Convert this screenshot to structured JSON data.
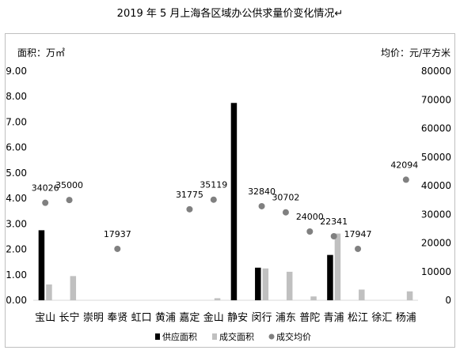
{
  "chart_data": {
    "type": "bar",
    "title": "2019 年 5 月上海各区域办公供求量价变化情况↵",
    "ylabel_left": "面积：万㎡",
    "ylabel_right": "均价：元/平方米",
    "ylim_left": [
      0,
      9
    ],
    "ylim_right": [
      0,
      80000
    ],
    "yticks_left": [
      "0.00",
      "1.00",
      "2.00",
      "3.00",
      "4.00",
      "5.00",
      "6.00",
      "7.00",
      "8.00",
      "9.00"
    ],
    "yticks_right": [
      "0",
      "10000",
      "20000",
      "30000",
      "40000",
      "50000",
      "60000",
      "70000",
      "80000"
    ],
    "categories": [
      "宝山",
      "长宁",
      "崇明",
      "奉贤",
      "虹口",
      "黄浦",
      "嘉定",
      "金山",
      "静安",
      "闵行",
      "浦东",
      "普陀",
      "青浦",
      "松江",
      "徐汇",
      "杨浦"
    ],
    "series": [
      {
        "name": "供应面积",
        "kind": "bar",
        "axis": "left",
        "color": "#000000",
        "values": [
          2.75,
          0,
          0,
          0,
          0,
          0,
          0,
          0,
          7.75,
          1.28,
          0,
          0,
          1.78,
          0,
          0,
          0
        ]
      },
      {
        "name": "成交面积",
        "kind": "bar",
        "axis": "left",
        "color": "#c0c0c0",
        "values": [
          0.62,
          0.95,
          0,
          0,
          0,
          0,
          0,
          0.08,
          0,
          1.25,
          1.12,
          0.15,
          2.62,
          0.42,
          0,
          0.35
        ]
      },
      {
        "name": "成交均价",
        "kind": "scatter",
        "axis": "right",
        "color": "#808080",
        "values": [
          34026,
          35000,
          null,
          17937,
          null,
          null,
          31775,
          35119,
          null,
          32840,
          30702,
          24000,
          22341,
          17947,
          null,
          42094
        ]
      }
    ],
    "legend_position": "bottom",
    "grid": false
  }
}
